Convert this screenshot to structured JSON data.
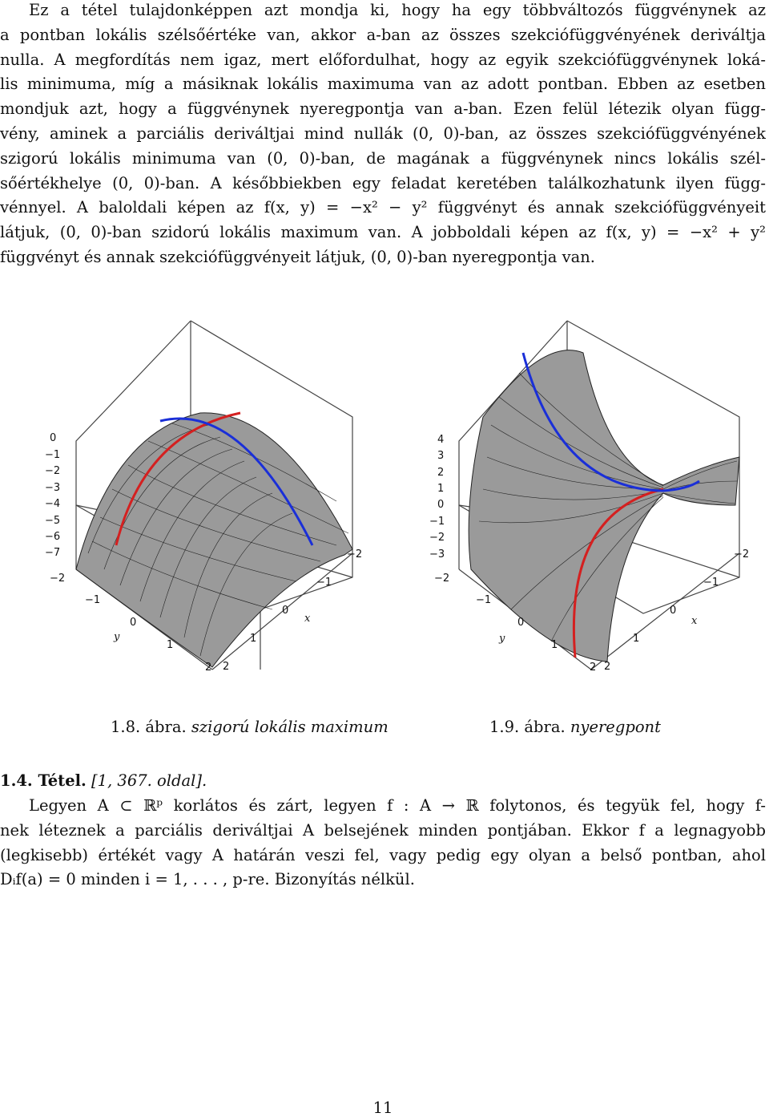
{
  "intro_lines": [
    "Ez a tétel tulajdonképpen azt mondja ki, hogy ha egy többváltozós függvénynek az",
    "a pontban lokális szélsőértéke van, akkor a-ban az összes szekciófüggvényének deriváltja",
    "nulla. A megfordítás nem igaz, mert előfordulhat, hogy az egyik szekciófüggvénynek loká-",
    "lis minimuma, míg a másiknak lokális maximuma van az adott pontban. Ebben az esetben",
    "mondjuk azt, hogy a függvénynek nyeregpontja van a-ban. Ezen felül létezik olyan függ-",
    "vény, aminek a parciális deriváltjai mind nullák (0, 0)-ban, az összes szekciófüggvényének",
    "szigorú lokális minimuma van (0, 0)-ban, de magának a függvénynek nincs lokális szél-",
    "sőértékhelye (0, 0)-ban. A későbbiekben egy feladat keretében találkozhatunk ilyen függ-",
    "vénnyel. A baloldali képen az f(x, y) = −x² − y² függvényt és annak szekciófüggvényeit",
    "látjuk, (0, 0)-ban szidorú lokális maximum van. A jobboldali képen az f(x, y) = −x² + y²",
    "függvényt és annak szekciófüggvényeit látjuk, (0, 0)-ban nyeregpontja van."
  ],
  "figures": {
    "left": {
      "caption_num": "1.8. ábra.",
      "caption_text": "szigorú lokális maximum",
      "z_ticks": [
        "0",
        "−1",
        "−2",
        "−3",
        "−4",
        "−5",
        "−6",
        "−7"
      ],
      "x_ticks": [
        "−2",
        "−1",
        "0",
        "1",
        "2"
      ],
      "y_ticks": [
        "−2",
        "−1",
        "0",
        "1",
        "2"
      ],
      "x_label": "x",
      "y_label": "y"
    },
    "right": {
      "caption_num": "1.9. ábra.",
      "caption_text": "nyeregpont",
      "z_ticks": [
        "4",
        "3",
        "2",
        "1",
        "0",
        "−1",
        "−2",
        "−3"
      ],
      "x_ticks": [
        "−2",
        "−1",
        "0",
        "1",
        "2"
      ],
      "y_ticks": [
        "−2",
        "−1",
        "0",
        "1",
        "2"
      ],
      "x_label": "x",
      "y_label": "y"
    },
    "colors": {
      "surface": "#9a9a9a",
      "mesh": "#222222",
      "section_x": "#d42020",
      "section_y": "#1a2fd8",
      "box": "#444444"
    }
  },
  "theorem": {
    "label": "1.4. Tétel.",
    "ref": "[1, 367. oldal].",
    "lines": [
      "Legyen A ⊂ ℝᵖ korlátos és zárt, legyen f : A → ℝ folytonos, és tegyük fel, hogy f-",
      "nek léteznek a parciális deriváltjai A belsejének minden pontjában. Ekkor f a legnagyobb",
      "(legkisebb) értékét vagy A határán veszi fel, vagy pedig egy olyan a belső pontban, ahol",
      "Dᵢf(a) = 0 minden i = 1, . . . , p-re. Bizonyítás nélkül."
    ]
  },
  "page_number": "11"
}
